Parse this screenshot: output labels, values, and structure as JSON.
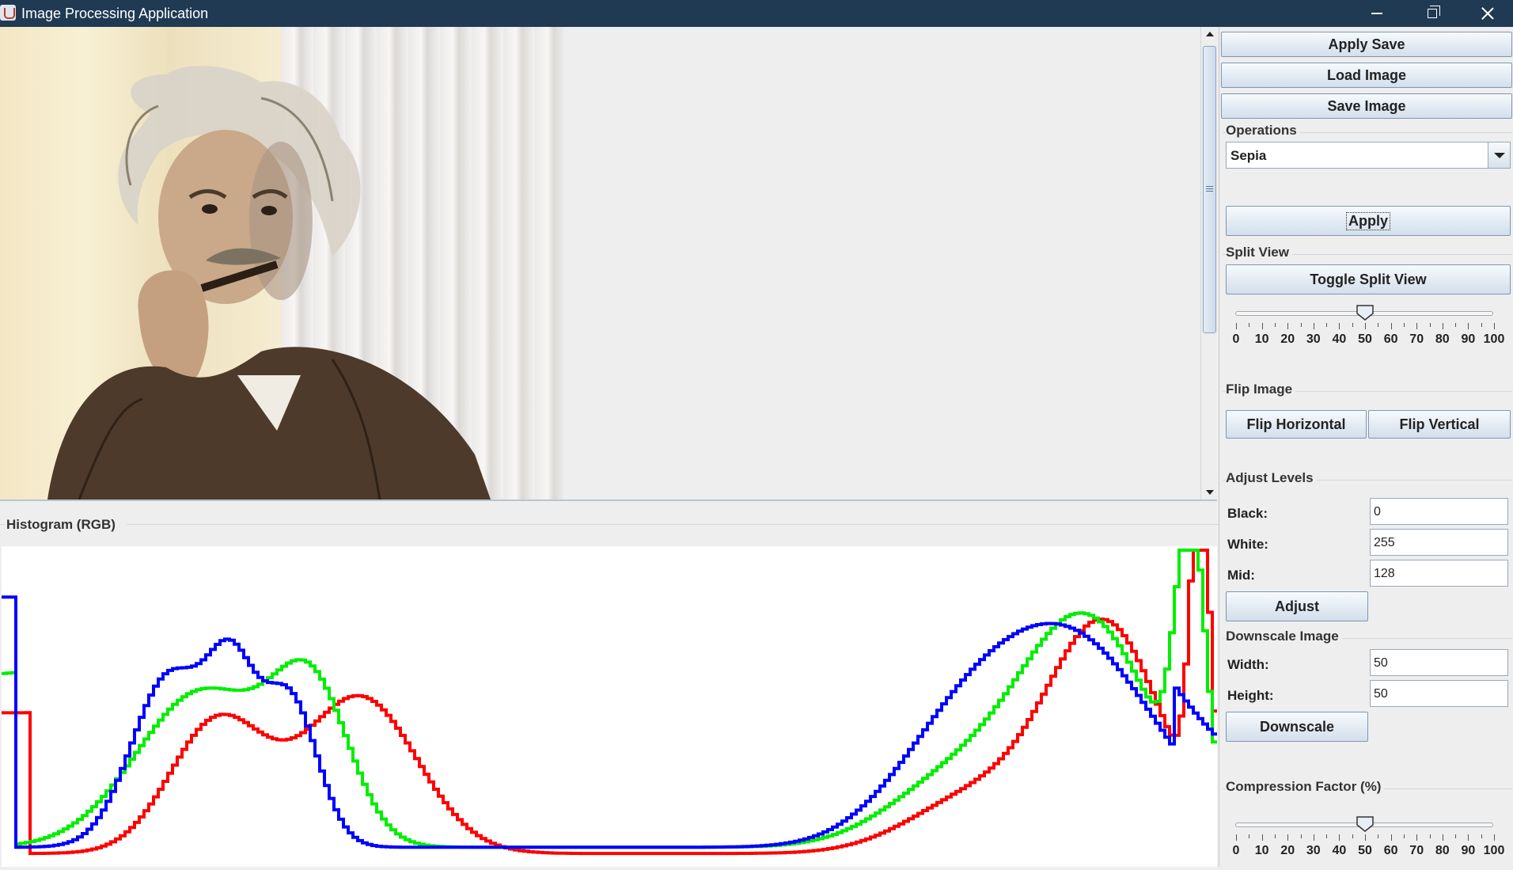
{
  "window": {
    "title": "Image Processing Application",
    "icons": {
      "app": "java-cup-icon",
      "minimize": "minimize-icon",
      "maximize": "restore-icon",
      "close": "close-icon"
    }
  },
  "viewer": {
    "image_description_hidden": true,
    "split_percent": 50
  },
  "histogram": {
    "title": "Histogram (RGB)",
    "colors": {
      "red": "#ff0000",
      "green": "#00ee00",
      "blue": "#0000ff"
    }
  },
  "controls": {
    "apply_save": "Apply Save",
    "load_image": "Load Image",
    "save_image": "Save Image",
    "operations": {
      "label": "Operations",
      "selected": "Sepia",
      "apply": "Apply"
    },
    "split_view": {
      "label": "Split View",
      "toggle": "Toggle Split View",
      "value": 50,
      "ticks": [
        "0",
        "10",
        "20",
        "30",
        "40",
        "50",
        "60",
        "70",
        "80",
        "90",
        "100"
      ]
    },
    "flip": {
      "label": "Flip Image",
      "horizontal": "Flip Horizontal",
      "vertical": "Flip Vertical"
    },
    "levels": {
      "label": "Adjust Levels",
      "black_label": "Black:",
      "black_value": "0",
      "white_label": "White:",
      "white_value": "255",
      "mid_label": "Mid:",
      "mid_value": "128",
      "adjust": "Adjust"
    },
    "downscale": {
      "label": "Downscale Image",
      "width_label": "Width:",
      "width_value": "50",
      "height_label": "Height:",
      "height_value": "50",
      "button": "Downscale"
    },
    "compression": {
      "label": "Compression Factor (%)",
      "value": 50,
      "ticks": [
        "0",
        "10",
        "20",
        "30",
        "40",
        "50",
        "60",
        "70",
        "80",
        "90",
        "100"
      ]
    }
  }
}
